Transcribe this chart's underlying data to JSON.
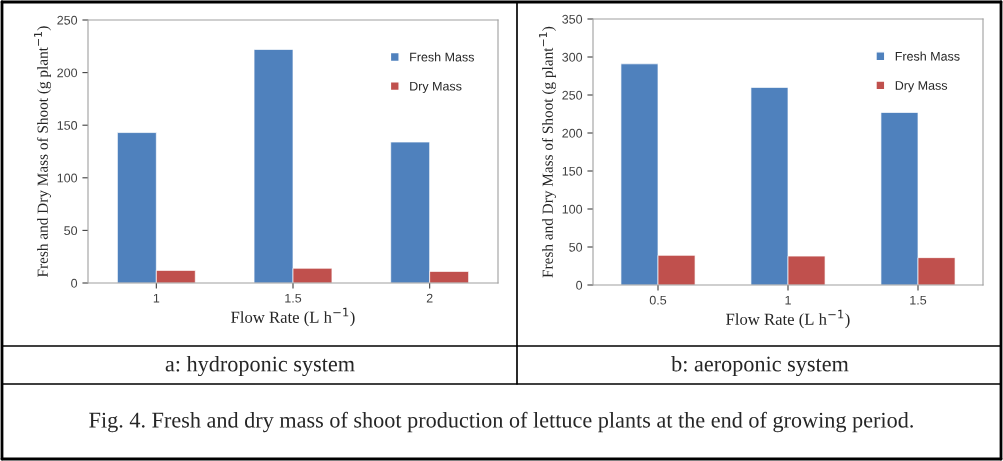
{
  "chart_data": [
    {
      "type": "bar",
      "categories": [
        "1",
        "1.5",
        "2"
      ],
      "xlabel": "Flow Rate (L h$^{−1}$)",
      "ylabel": "Fresh and Dry Mass of Shoot (g plant$^{−1}$)",
      "series": [
        {
          "name": "Fresh Mass",
          "color": "#4f81bd",
          "values": [
            143,
            222,
            134
          ]
        },
        {
          "name": "Dry Mass",
          "color": "#c0504d",
          "values": [
            12,
            14,
            11
          ]
        }
      ],
      "ylim": [
        0,
        250
      ],
      "yticks": [
        0,
        50,
        100,
        150,
        200,
        250
      ],
      "grid": false,
      "legend": "top right",
      "annotations": [
        "a: hydroponic system",
        "Fig. 4. Fresh and dry mass of shoot production of lettuce plants at the end of growing period."
      ]
    },
    {
      "type": "bar",
      "categories": [
        "0.5",
        "1",
        "1.5"
      ],
      "xlabel": "Flow Rate (L h$^{−1}$)",
      "ylabel": "Fresh and Dry Mass of Shoot (g plant$^{−1}$)",
      "series": [
        {
          "name": "Fresh Mass",
          "color": "#4f81bd",
          "values": [
            291,
            260,
            227
          ]
        },
        {
          "name": "Dry Mass",
          "color": "#c0504d",
          "values": [
            39,
            38,
            36
          ]
        }
      ],
      "ylim": [
        0,
        350
      ],
      "yticks": [
        0,
        50,
        100,
        150,
        200,
        250,
        300,
        350
      ],
      "grid": false,
      "legend": "top right",
      "annotations": [
        "b: aeroponic system"
      ]
    }
  ]
}
